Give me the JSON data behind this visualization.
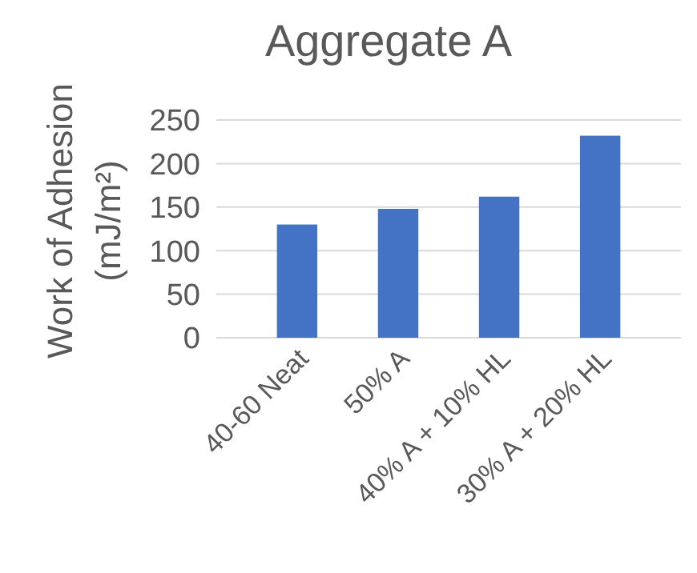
{
  "chart_data": {
    "type": "bar",
    "title": "Aggregate A",
    "ylabel": "Work of Adhesion\n(mJ/m²)",
    "categories": [
      "40-60 Neat",
      "50% A",
      "40% A + 10% HL",
      "30% A + 20% HL"
    ],
    "values": [
      130,
      148,
      162,
      232
    ],
    "color": "#4472c4",
    "ylim": [
      0,
      250
    ],
    "yticks": [
      0,
      50,
      100,
      150,
      200,
      250
    ],
    "grid": "y"
  }
}
